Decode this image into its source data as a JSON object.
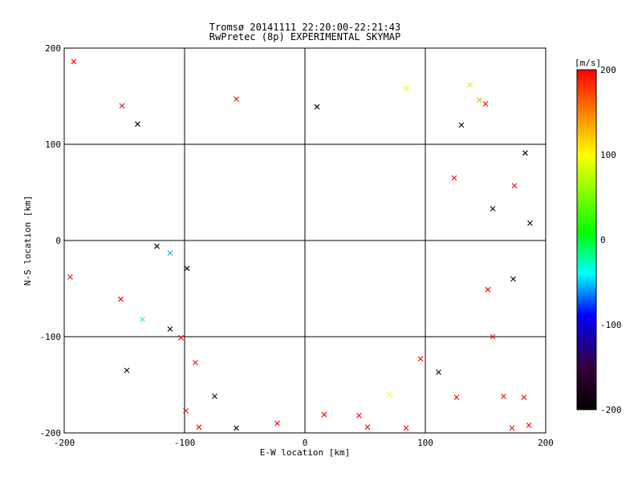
{
  "chart_data": {
    "type": "scatter",
    "title": "Tromsø 20141111 22:20:00-22:21:43",
    "subtitle": "RwPretec (8p) EXPERIMENTAL SKYMAP",
    "xlabel": "E-W location [km]",
    "ylabel": "N-S location [km]",
    "xlim": [
      -200,
      200
    ],
    "ylim": [
      -200,
      200
    ],
    "xticks": [
      -200,
      -100,
      0,
      100,
      200
    ],
    "yticks": [
      -200,
      -100,
      0,
      100,
      200
    ],
    "grid": true,
    "colorbar": {
      "label": "[m/s]",
      "min": -200,
      "max": 200,
      "ticks": [
        200,
        100,
        0,
        -100,
        -200
      ],
      "colors": [
        "#000000",
        "#330033",
        "#0000ff",
        "#00ffff",
        "#00ff00",
        "#ffff00",
        "#ff0000"
      ]
    },
    "points": [
      {
        "x": -192,
        "y": 186,
        "v": 200,
        "m": "x"
      },
      {
        "x": -152,
        "y": 140,
        "v": 200,
        "m": "x"
      },
      {
        "x": -139,
        "y": 121,
        "v": -200,
        "m": "x"
      },
      {
        "x": -57,
        "y": 147,
        "v": 200,
        "m": "x"
      },
      {
        "x": 10,
        "y": 139,
        "v": -200,
        "m": "x"
      },
      {
        "x": 84,
        "y": 158,
        "v": 100,
        "m": "x"
      },
      {
        "x": 137,
        "y": 162,
        "v": 80,
        "m": "x"
      },
      {
        "x": 145,
        "y": 146,
        "v": 130,
        "m": "x"
      },
      {
        "x": 150,
        "y": 142,
        "v": 200,
        "m": "x"
      },
      {
        "x": 130,
        "y": 120,
        "v": -200,
        "m": "x"
      },
      {
        "x": 183,
        "y": 91,
        "v": -200,
        "m": "x"
      },
      {
        "x": 187,
        "y": 18,
        "v": -200,
        "m": "x"
      },
      {
        "x": 174,
        "y": 57,
        "v": 200,
        "m": "x"
      },
      {
        "x": 156,
        "y": 33,
        "v": -200,
        "m": "x"
      },
      {
        "x": 124,
        "y": 65,
        "v": 200,
        "m": "x"
      },
      {
        "x": -195,
        "y": -38,
        "v": 200,
        "m": "x"
      },
      {
        "x": -153,
        "y": -61,
        "v": 200,
        "m": "x"
      },
      {
        "x": -135,
        "y": -82,
        "v": -30,
        "m": "x"
      },
      {
        "x": -148,
        "y": -135,
        "v": -200,
        "m": "x"
      },
      {
        "x": -112,
        "y": -92,
        "v": -200,
        "m": "x"
      },
      {
        "x": -112,
        "y": -13,
        "v": -60,
        "m": "x"
      },
      {
        "x": -123,
        "y": -6,
        "v": -200,
        "m": "x"
      },
      {
        "x": -91,
        "y": -127,
        "v": 200,
        "m": "x"
      },
      {
        "x": -103,
        "y": -101,
        "v": 200,
        "m": "x"
      },
      {
        "x": -98,
        "y": -29,
        "v": -200,
        "m": "x"
      },
      {
        "x": 96,
        "y": -123,
        "v": 200,
        "m": "x"
      },
      {
        "x": 111,
        "y": -137,
        "v": -200,
        "m": "x"
      },
      {
        "x": 165,
        "y": -162,
        "v": 200,
        "m": "x"
      },
      {
        "x": 182,
        "y": -163,
        "v": 200,
        "m": "x"
      },
      {
        "x": 172,
        "y": -195,
        "v": 200,
        "m": "x"
      },
      {
        "x": 186,
        "y": -192,
        "v": 200,
        "m": "x"
      },
      {
        "x": 156,
        "y": -100,
        "v": 200,
        "m": "x"
      },
      {
        "x": 173,
        "y": -40,
        "v": -200,
        "m": "x"
      },
      {
        "x": 152,
        "y": -51,
        "v": 200,
        "m": "x"
      },
      {
        "x": 126,
        "y": -163,
        "v": 200,
        "m": "x"
      },
      {
        "x": 84,
        "y": -195,
        "v": 200,
        "m": "x"
      },
      {
        "x": 52,
        "y": -194,
        "v": 200,
        "m": "x"
      },
      {
        "x": 70,
        "y": -160,
        "v": 100,
        "m": "x"
      },
      {
        "x": 45,
        "y": -182,
        "v": 200,
        "m": "x"
      },
      {
        "x": -57,
        "y": -195,
        "v": -200,
        "m": "x"
      },
      {
        "x": -88,
        "y": -194,
        "v": 200,
        "m": "x"
      },
      {
        "x": -23,
        "y": -190,
        "v": 200,
        "m": "x"
      },
      {
        "x": 16,
        "y": -181,
        "v": 200,
        "m": "x"
      },
      {
        "x": -75,
        "y": -162,
        "v": -200,
        "m": "x"
      },
      {
        "x": -99,
        "y": -177,
        "v": 200,
        "m": "x"
      }
    ]
  }
}
